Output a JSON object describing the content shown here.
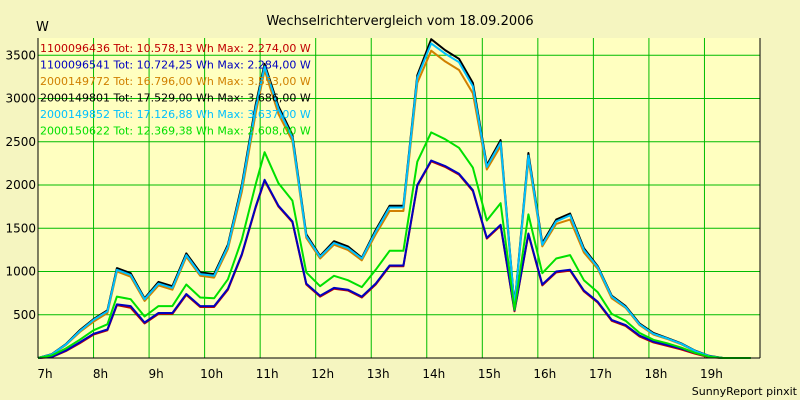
{
  "chart_data": {
    "type": "line",
    "title": "Wechselrichtervergleich vom 18.09.2006",
    "ylabel": "W",
    "footer": "SunnyReport pinxit",
    "xlabel": "",
    "xlim": [
      7.0,
      20.0
    ],
    "ylim": [
      0,
      3700
    ],
    "x_ticks": [
      7,
      8,
      9,
      10,
      11,
      12,
      13,
      14,
      15,
      16,
      17,
      18,
      19
    ],
    "x_tick_labels": [
      "7h",
      "8h",
      "9h",
      "10h",
      "11h",
      "12h",
      "13h",
      "14h",
      "15h",
      "16h",
      "17h",
      "18h",
      "19h"
    ],
    "y_ticks": [
      500,
      1000,
      1500,
      2000,
      2500,
      3000,
      3500
    ],
    "y_tick_labels": [
      "500",
      "1000",
      "1500",
      "2000",
      "2500",
      "3000",
      "3500"
    ],
    "grid": true,
    "legend_position": "top-left",
    "background": "#ffffc0",
    "x": [
      7.0,
      7.25,
      7.5,
      7.75,
      8.0,
      8.25,
      8.42,
      8.67,
      8.92,
      9.17,
      9.42,
      9.67,
      9.92,
      10.17,
      10.42,
      10.67,
      10.92,
      11.08,
      11.33,
      11.58,
      11.83,
      12.08,
      12.33,
      12.58,
      12.83,
      13.08,
      13.33,
      13.58,
      13.83,
      14.08,
      14.33,
      14.58,
      14.83,
      15.08,
      15.33,
      15.58,
      15.83,
      16.08,
      16.33,
      16.58,
      16.83,
      17.08,
      17.33,
      17.58,
      17.83,
      18.08,
      18.33,
      18.58,
      18.83,
      19.08,
      19.33,
      19.58,
      19.83
    ],
    "series": [
      {
        "name": "1100096436",
        "color": "#c00000",
        "legend_text": "1100096436 Tot: 10.578,13 Wh Max: 2.274,00 W",
        "values": [
          0,
          10,
          80,
          170,
          270,
          320,
          610,
          580,
          400,
          510,
          510,
          730,
          590,
          590,
          790,
          1190,
          1740,
          2050,
          1750,
          1570,
          850,
          710,
          800,
          780,
          700,
          850,
          1060,
          1060,
          1990,
          2274,
          2210,
          2120,
          1930,
          1380,
          1530,
          540,
          1430,
          840,
          990,
          1010,
          770,
          640,
          430,
          370,
          250,
          180,
          140,
          100,
          50,
          10,
          0,
          0,
          0
        ]
      },
      {
        "name": "1100096541",
        "color": "#0000c0",
        "legend_text": "1100096541 Tot: 10.724,25 Wh Max: 2.284,00 W",
        "values": [
          0,
          15,
          85,
          180,
          280,
          330,
          620,
          600,
          410,
          520,
          520,
          740,
          600,
          600,
          800,
          1200,
          1750,
          2060,
          1760,
          1580,
          860,
          720,
          810,
          790,
          710,
          860,
          1070,
          1070,
          2000,
          2284,
          2220,
          2130,
          1940,
          1390,
          1540,
          550,
          1440,
          850,
          1000,
          1020,
          780,
          650,
          440,
          380,
          260,
          190,
          150,
          110,
          60,
          15,
          0,
          0,
          0
        ]
      },
      {
        "name": "2000149772",
        "color": "#d08000",
        "legend_text": "2000149772 Tot: 16.796,00 Wh Max: 3.553,00 W",
        "values": [
          0,
          40,
          150,
          300,
          420,
          520,
          1000,
          940,
          660,
          840,
          790,
          1170,
          950,
          930,
          1260,
          1920,
          2830,
          3330,
          2820,
          2510,
          1390,
          1150,
          1310,
          1250,
          1130,
          1430,
          1700,
          1700,
          3180,
          3553,
          3430,
          3330,
          3060,
          2180,
          2450,
          590,
          2300,
          1290,
          1550,
          1600,
          1220,
          1030,
          690,
          580,
          380,
          270,
          220,
          160,
          80,
          20,
          0,
          0,
          0
        ]
      },
      {
        "name": "2000149801",
        "color": "#000000",
        "legend_text": "2000149801 Tot: 17.529,00 Wh Max: 3.686,00 W",
        "values": [
          0,
          45,
          160,
          320,
          450,
          550,
          1040,
          980,
          690,
          880,
          830,
          1210,
          990,
          970,
          1310,
          2000,
          2930,
          3400,
          2910,
          2580,
          1430,
          1180,
          1350,
          1290,
          1160,
          1480,
          1760,
          1760,
          3270,
          3686,
          3560,
          3460,
          3180,
          2230,
          2520,
          600,
          2370,
          1330,
          1600,
          1670,
          1270,
          1060,
          720,
          600,
          400,
          290,
          230,
          170,
          85,
          25,
          0,
          0,
          0
        ]
      },
      {
        "name": "2000149852",
        "color": "#00c0ff",
        "legend_text": "2000149852 Tot: 17.126,88 Wh Max: 3.637,00 W",
        "values": [
          0,
          43,
          155,
          310,
          440,
          540,
          1020,
          960,
          680,
          860,
          810,
          1190,
          970,
          950,
          1290,
          1970,
          2890,
          3370,
          2880,
          2550,
          1410,
          1170,
          1330,
          1270,
          1150,
          1460,
          1740,
          1740,
          3240,
          3637,
          3520,
          3420,
          3140,
          2210,
          2490,
          595,
          2340,
          1310,
          1580,
          1650,
          1250,
          1050,
          710,
          590,
          390,
          280,
          225,
          165,
          82,
          22,
          0,
          0,
          0
        ]
      },
      {
        "name": "2000150622",
        "color": "#00e000",
        "legend_text": "2000150622 Tot: 12.369,38 Wh Max: 2.608,00 W",
        "values": [
          0,
          30,
          110,
          210,
          320,
          390,
          710,
          680,
          480,
          600,
          600,
          850,
          700,
          690,
          910,
          1370,
          2010,
          2380,
          2020,
          1820,
          990,
          830,
          950,
          900,
          820,
          1020,
          1240,
          1240,
          2270,
          2608,
          2530,
          2430,
          2200,
          1590,
          1790,
          560,
          1660,
          980,
          1150,
          1190,
          900,
          760,
          510,
          430,
          290,
          210,
          170,
          120,
          60,
          15,
          0,
          0,
          0
        ]
      }
    ]
  }
}
